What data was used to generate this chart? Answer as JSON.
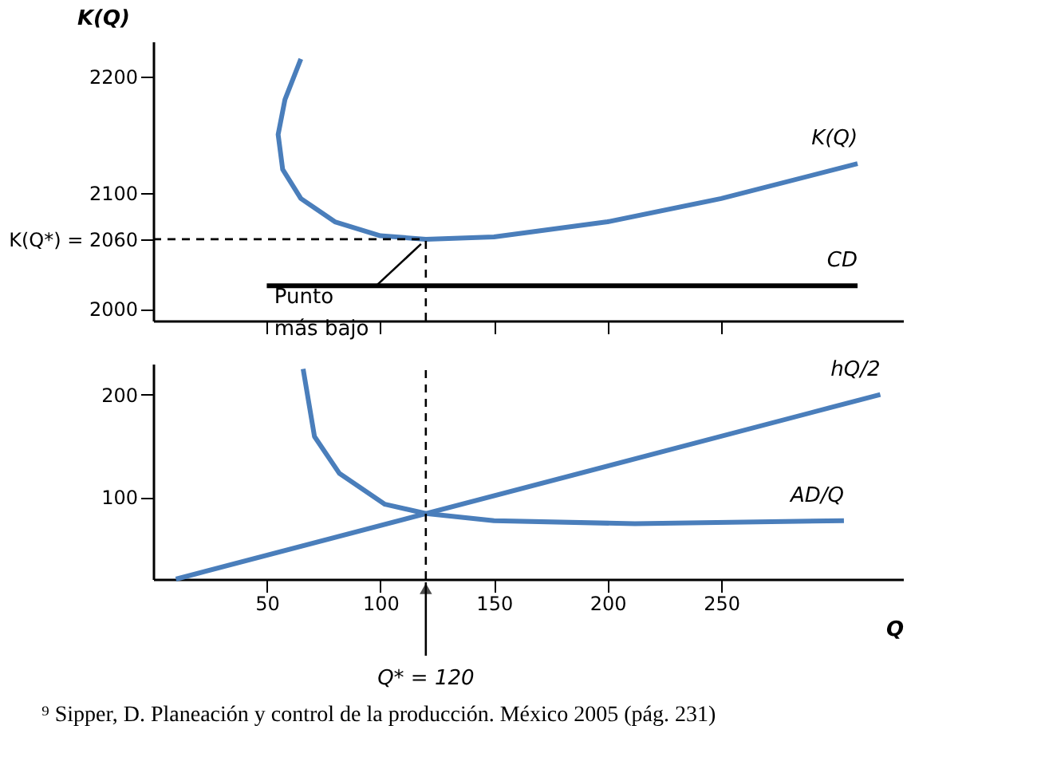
{
  "chart_data": [
    {
      "type": "line",
      "ylabel": "K(Q)",
      "xlim": [
        0,
        330
      ],
      "xticks": [
        {
          "value": 50,
          "label": null
        },
        {
          "value": 100,
          "label": null
        },
        {
          "value": 150,
          "label": null
        },
        {
          "value": 200,
          "label": null
        },
        {
          "value": 250,
          "label": null
        }
      ],
      "ylim": [
        1990,
        2230
      ],
      "yticks": [
        2000,
        {
          "value": 2060,
          "label": "K(Q*) = 2060"
        },
        2100,
        2200
      ],
      "tick_labels": "y",
      "grid": false,
      "legend": false,
      "series": [
        {
          "name": "K(Q)",
          "color": "#4a7ebb",
          "x": [
            65,
            58,
            55,
            57,
            65,
            80,
            100,
            120,
            150,
            200,
            250,
            310
          ],
          "values": [
            2215,
            2180,
            2150,
            2120,
            2095,
            2075,
            2063,
            2060,
            2062,
            2075,
            2095,
            2125
          ]
        },
        {
          "name": "CD",
          "color": "#000000",
          "x": [
            50,
            310
          ],
          "values": [
            2020,
            2020
          ]
        }
      ],
      "ref_lines": [
        {
          "axis": "y",
          "value": 2060,
          "line_style": "dashed",
          "color": "#000000"
        },
        {
          "axis": "x",
          "value": 120,
          "line_style": "dashed",
          "color": "#000000"
        }
      ],
      "annotations": [
        {
          "text": "Punto más bajo",
          "x": 120,
          "y": 2060
        }
      ]
    },
    {
      "type": "line",
      "xlabel": "Q",
      "xlim": [
        0,
        330
      ],
      "xticks": [
        50,
        100,
        150,
        200,
        250
      ],
      "ylim": [
        20,
        230
      ],
      "yticks": [
        100,
        200
      ],
      "grid": false,
      "legend": false,
      "series": [
        {
          "name": "AD/Q",
          "color": "#4a7ebb",
          "x": [
            66,
            71,
            82,
            102,
            120,
            150,
            212,
            304
          ],
          "values": [
            225,
            159,
            123,
            93,
            84,
            77,
            74,
            77
          ]
        },
        {
          "name": "hQ/2",
          "color": "#4a7ebb",
          "x": [
            10,
            320
          ],
          "values": [
            20,
            200
          ]
        }
      ],
      "ref_lines": [
        {
          "axis": "x",
          "value": 120,
          "label": "Q* = 120",
          "line_style": "dashed",
          "color": "#000000"
        }
      ],
      "annotations": [
        "⁹ Sipper, D. Planeación y control de la producción. México 2005 (pág. 231)"
      ]
    }
  ]
}
